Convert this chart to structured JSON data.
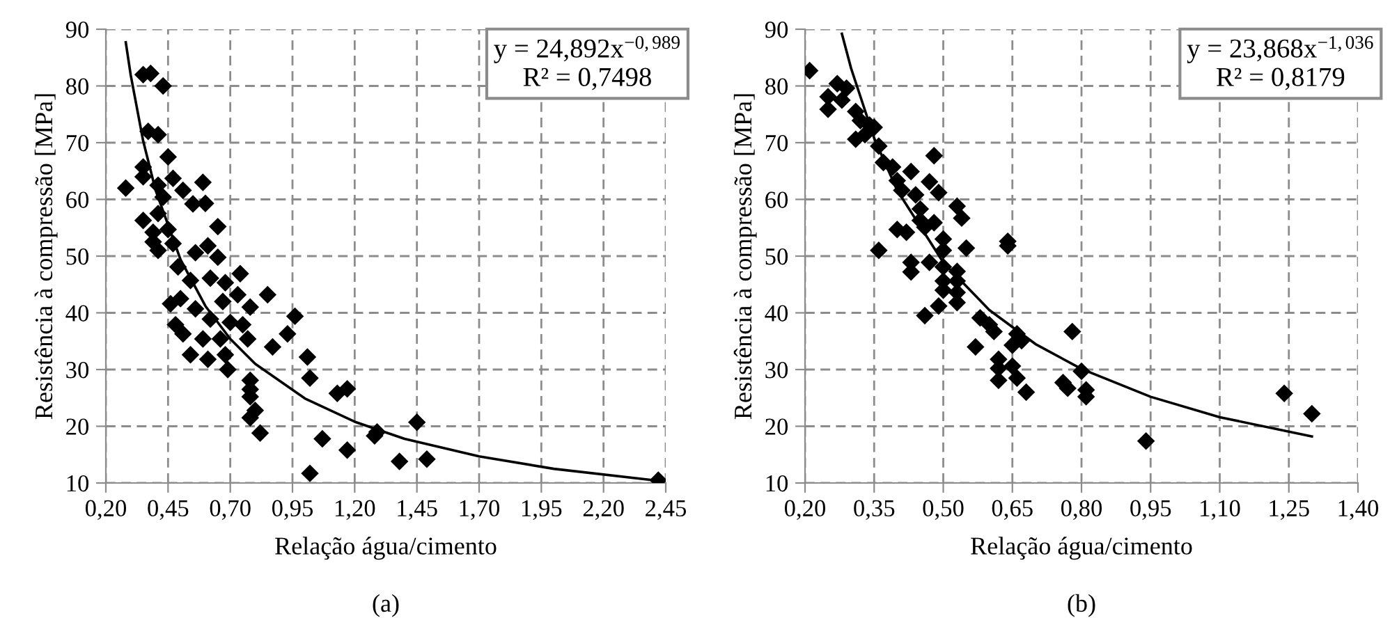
{
  "chart_data": [
    {
      "type": "scatter",
      "xlabel": "Relação água/cimento",
      "ylabel": "Resistência à compressão [MPa]",
      "annotations": [
        "y = 24,892x$^{−0,989}$\nR² = 0,7498",
        "(a)"
      ],
      "xlim": [
        0.2,
        2.45
      ],
      "ylim": [
        10,
        90
      ],
      "xticks": [
        {
          "value": 0.2,
          "label": "0,20"
        },
        {
          "value": 0.45,
          "label": "0,45"
        },
        {
          "value": 0.7,
          "label": "0,70"
        },
        {
          "value": 0.95,
          "label": "0,95"
        },
        {
          "value": 1.2,
          "label": "1,20"
        },
        {
          "value": 1.45,
          "label": "1,45"
        },
        {
          "value": 1.7,
          "label": "1,70"
        },
        {
          "value": 1.95,
          "label": "1,95"
        },
        {
          "value": 2.2,
          "label": "2,20"
        },
        {
          "value": 2.45,
          "label": "2,45"
        }
      ],
      "yticks": [
        10,
        20,
        30,
        40,
        50,
        60,
        70,
        80,
        90
      ],
      "grid": true,
      "series": [
        {
          "color": "#000000",
          "marker": "diamond",
          "x": [
            0.35,
            0.38,
            0.43,
            0.37,
            0.41,
            0.45,
            0.35,
            0.35,
            0.28,
            0.41,
            0.47,
            0.59,
            0.51,
            0.43,
            0.55,
            0.6,
            0.35,
            0.41,
            0.39,
            0.45,
            0.39,
            0.41,
            0.47,
            0.65,
            0.56,
            0.61,
            0.65,
            0.49,
            0.54,
            0.62,
            0.68,
            0.74,
            0.85,
            0.46,
            0.5,
            0.56,
            0.67,
            0.73,
            0.78,
            0.48,
            0.62,
            0.7,
            0.75,
            0.96,
            0.51,
            0.59,
            0.66,
            0.77,
            0.93,
            0.54,
            0.61,
            0.68,
            0.69,
            0.87,
            1.01,
            1.02,
            0.78,
            0.78,
            0.78,
            1.13,
            1.17,
            0.8,
            0.78,
            0.82,
            1.07,
            1.17,
            1.28,
            1.29,
            1.02,
            1.38,
            1.45,
            1.49,
            2.42
          ],
          "values": [
            82,
            82.2,
            80,
            72,
            71.4,
            67.5,
            65.7,
            64,
            62,
            62.5,
            63.7,
            63,
            61.6,
            60.4,
            59.2,
            59.3,
            56.3,
            57.5,
            54.2,
            54.7,
            52.5,
            51,
            52.2,
            55.2,
            50.6,
            51.8,
            49.8,
            48.1,
            45.7,
            46.1,
            45.3,
            46.9,
            43.2,
            41.6,
            42.5,
            40.7,
            42,
            43.2,
            41,
            37.9,
            38.9,
            38.3,
            37.9,
            39.4,
            36.3,
            35.4,
            35.4,
            35.4,
            36.3,
            32.6,
            31.8,
            32.6,
            30,
            34,
            32.2,
            28.5,
            28.1,
            26.5,
            25.2,
            25.8,
            26.6,
            22.8,
            21.5,
            18.8,
            17.8,
            15.8,
            18.3,
            19,
            11.7,
            13.8,
            20.7,
            14.2,
            10.5
          ]
        },
        {
          "type": "line",
          "color": "#000000",
          "marker": "none",
          "line_style": "solid",
          "x": [
            0.28,
            0.3,
            0.35,
            0.4,
            0.5,
            0.6,
            0.7,
            0.8,
            1.0,
            1.2,
            1.4,
            1.7,
            2.0,
            2.42
          ],
          "values": [
            87.7,
            81.9,
            70.3,
            61.6,
            49.4,
            41.2,
            35.4,
            31.0,
            24.9,
            20.8,
            17.8,
            14.7,
            12.5,
            10.4
          ]
        }
      ]
    },
    {
      "type": "scatter",
      "xlabel": "Relação água/cimento",
      "ylabel": "Resistência à compressão [MPa]",
      "annotations": [
        "y = 23,868x$^{−1,036}$\nR² = 0,8179",
        "(b)"
      ],
      "xlim": [
        0.2,
        1.4
      ],
      "ylim": [
        10,
        90
      ],
      "xticks": [
        {
          "value": 0.2,
          "label": "0,20"
        },
        {
          "value": 0.35,
          "label": "0,35"
        },
        {
          "value": 0.5,
          "label": "0,50"
        },
        {
          "value": 0.65,
          "label": "0,65"
        },
        {
          "value": 0.8,
          "label": "0,80"
        },
        {
          "value": 0.95,
          "label": "0,95"
        },
        {
          "value": 1.1,
          "label": "1,10"
        },
        {
          "value": 1.25,
          "label": "1,25"
        },
        {
          "value": 1.4,
          "label": "1,40"
        }
      ],
      "yticks": [
        10,
        20,
        30,
        40,
        50,
        60,
        70,
        80,
        90
      ],
      "grid": true,
      "series": [
        {
          "color": "#000000",
          "marker": "diamond",
          "x": [
            0.21,
            0.25,
            0.25,
            0.27,
            0.29,
            0.28,
            0.31,
            0.32,
            0.34,
            0.35,
            0.31,
            0.33,
            0.36,
            0.48,
            0.37,
            0.39,
            0.43,
            0.4,
            0.47,
            0.49,
            0.44,
            0.41,
            0.53,
            0.54,
            0.45,
            0.45,
            0.48,
            0.46,
            0.4,
            0.42,
            0.64,
            0.64,
            0.5,
            0.55,
            0.36,
            0.5,
            0.43,
            0.43,
            0.47,
            0.5,
            0.53,
            0.5,
            0.53,
            0.5,
            0.53,
            0.49,
            0.53,
            0.46,
            0.58,
            0.6,
            0.61,
            0.57,
            0.66,
            0.67,
            0.65,
            0.78,
            0.62,
            0.62,
            0.65,
            0.62,
            0.66,
            0.68,
            0.76,
            0.77,
            0.8,
            0.81,
            0.81,
            1.24,
            1.3,
            0.94
          ],
          "values": [
            82.7,
            78.1,
            75.9,
            80.4,
            79.6,
            77.5,
            75.5,
            73.9,
            73.1,
            72.7,
            70.6,
            71.4,
            69.4,
            67.7,
            66.5,
            65.7,
            64.9,
            63.3,
            63.1,
            61.2,
            60.8,
            61.6,
            58.8,
            56.7,
            58.3,
            56.3,
            55.9,
            55.1,
            54.7,
            54.2,
            52.6,
            51.8,
            53,
            51.4,
            51,
            51,
            48.9,
            47.2,
            48.9,
            48.1,
            47.3,
            45.6,
            45.6,
            44,
            43.6,
            41.2,
            41.8,
            39.5,
            39.1,
            37.9,
            36.7,
            34,
            36.3,
            35.1,
            34.3,
            36.7,
            31.8,
            30.2,
            30.6,
            28.1,
            28.5,
            26,
            27.7,
            26.7,
            29.7,
            26.4,
            25.2,
            25.8,
            22.2,
            17.4
          ]
        },
        {
          "type": "line",
          "color": "#000000",
          "marker": "none",
          "line_style": "solid",
          "x": [
            0.28,
            0.3,
            0.35,
            0.4,
            0.5,
            0.6,
            0.7,
            0.8,
            0.95,
            1.1,
            1.3
          ],
          "values": [
            89.2,
            83.1,
            70.8,
            61.6,
            48.9,
            40.5,
            34.5,
            30.1,
            25.2,
            21.6,
            18.2
          ]
        }
      ]
    }
  ]
}
